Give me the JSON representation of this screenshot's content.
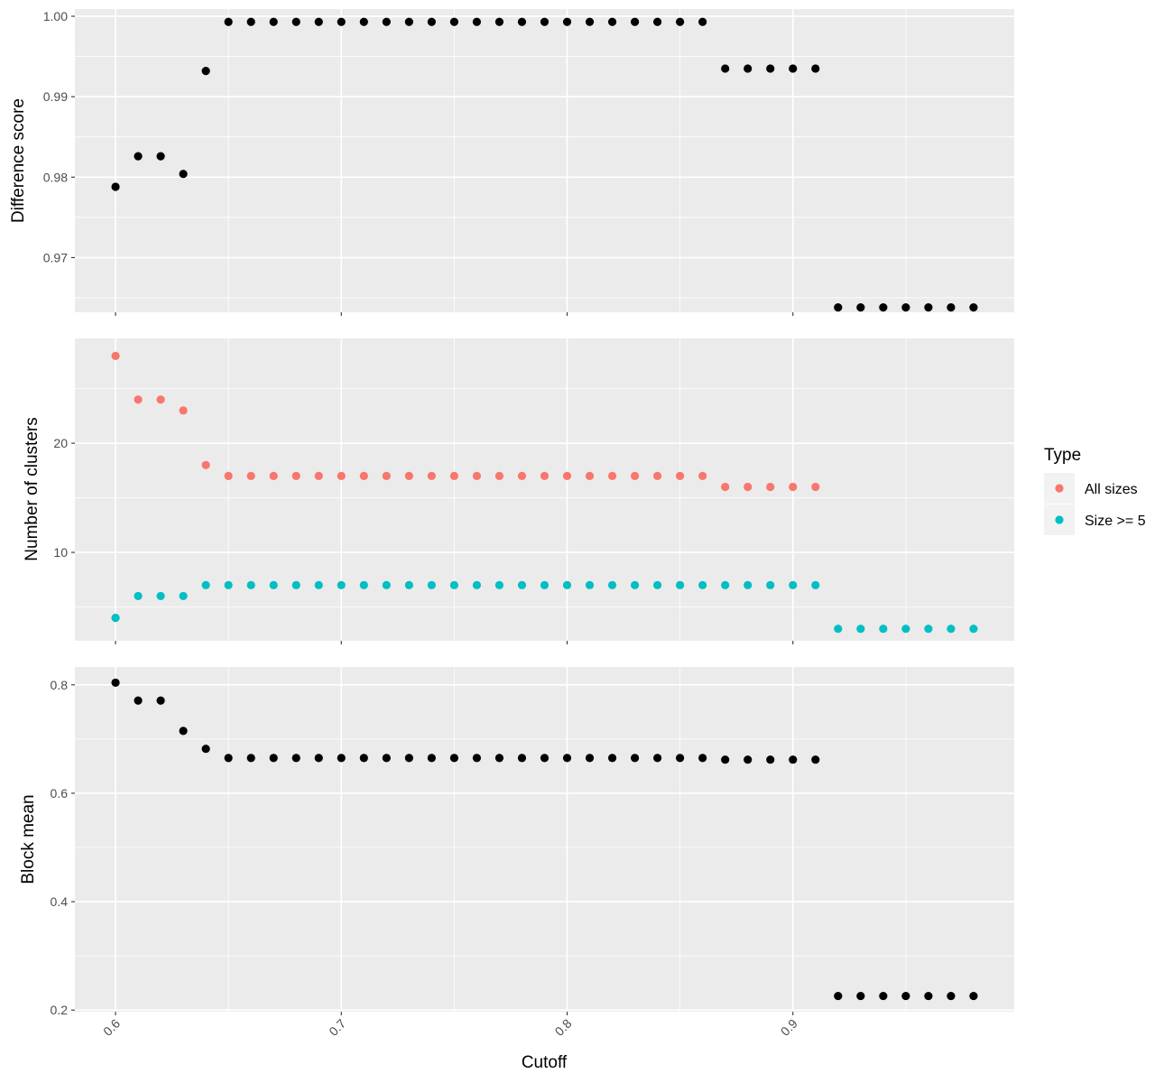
{
  "chart_data": [
    {
      "type": "scatter",
      "ylabel": "Difference score",
      "xlabel": "",
      "xlim": [
        0.582,
        0.998
      ],
      "ylim": [
        0.9632,
        1.0009
      ],
      "xticks": [
        0.6,
        0.7,
        0.8,
        0.9
      ],
      "xtick_labels": [
        "",
        "",
        "",
        ""
      ],
      "yticks": [
        0.97,
        0.98,
        0.99,
        1.0
      ],
      "ytick_labels": [
        "0.97",
        "0.98",
        "0.99",
        "1.00"
      ],
      "grid": true,
      "series": [
        {
          "color": "#000000",
          "x": [
            0.6,
            0.61,
            0.62,
            0.63,
            0.64,
            0.65,
            0.66,
            0.67,
            0.68,
            0.69,
            0.7,
            0.71,
            0.72,
            0.73,
            0.74,
            0.75,
            0.76,
            0.77,
            0.78,
            0.79,
            0.8,
            0.81,
            0.82,
            0.83,
            0.84,
            0.85,
            0.86,
            0.87,
            0.88,
            0.89,
            0.9,
            0.91,
            0.92,
            0.93,
            0.94,
            0.95,
            0.96,
            0.97,
            0.98
          ],
          "y": [
            0.9788,
            0.9826,
            0.9826,
            0.9804,
            0.9932,
            0.9993,
            0.9993,
            0.9993,
            0.9993,
            0.9993,
            0.9993,
            0.9993,
            0.9993,
            0.9993,
            0.9993,
            0.9993,
            0.9993,
            0.9993,
            0.9993,
            0.9993,
            0.9993,
            0.9993,
            0.9993,
            0.9993,
            0.9993,
            0.9993,
            0.9993,
            0.9935,
            0.9935,
            0.9935,
            0.9935,
            0.9935,
            0.9638,
            0.9638,
            0.9638,
            0.9638,
            0.9638,
            0.9638,
            0.9638
          ]
        }
      ]
    },
    {
      "type": "scatter",
      "ylabel": "Number of clusters",
      "xlabel": "",
      "xlim": [
        0.582,
        0.998
      ],
      "ylim": [
        1.9,
        29.6
      ],
      "xticks": [
        0.6,
        0.7,
        0.8,
        0.9
      ],
      "xtick_labels": [
        "",
        "",
        "",
        ""
      ],
      "yticks": [
        10,
        20
      ],
      "ytick_labels": [
        "10",
        "20"
      ],
      "grid": true,
      "legend": {
        "title": "Type",
        "position": "right",
        "entries": [
          "All sizes",
          "Size >= 5"
        ]
      },
      "series": [
        {
          "name": "All sizes",
          "color": "#F8766D",
          "x": [
            0.6,
            0.61,
            0.62,
            0.63,
            0.64,
            0.65,
            0.66,
            0.67,
            0.68,
            0.69,
            0.7,
            0.71,
            0.72,
            0.73,
            0.74,
            0.75,
            0.76,
            0.77,
            0.78,
            0.79,
            0.8,
            0.81,
            0.82,
            0.83,
            0.84,
            0.85,
            0.86,
            0.87,
            0.88,
            0.89,
            0.9,
            0.91
          ],
          "y": [
            28,
            24,
            24,
            23,
            18,
            17,
            17,
            17,
            17,
            17,
            17,
            17,
            17,
            17,
            17,
            17,
            17,
            17,
            17,
            17,
            17,
            17,
            17,
            17,
            17,
            17,
            17,
            16,
            16,
            16,
            16,
            16
          ]
        },
        {
          "name": "Size >= 5",
          "color": "#00BFC4",
          "x": [
            0.6,
            0.61,
            0.62,
            0.63,
            0.64,
            0.65,
            0.66,
            0.67,
            0.68,
            0.69,
            0.7,
            0.71,
            0.72,
            0.73,
            0.74,
            0.75,
            0.76,
            0.77,
            0.78,
            0.79,
            0.8,
            0.81,
            0.82,
            0.83,
            0.84,
            0.85,
            0.86,
            0.87,
            0.88,
            0.89,
            0.9,
            0.91,
            0.92,
            0.93,
            0.94,
            0.95,
            0.96,
            0.97,
            0.98
          ],
          "y": [
            4,
            6,
            6,
            6,
            7,
            7,
            7,
            7,
            7,
            7,
            7,
            7,
            7,
            7,
            7,
            7,
            7,
            7,
            7,
            7,
            7,
            7,
            7,
            7,
            7,
            7,
            7,
            7,
            7,
            7,
            7,
            7,
            3,
            3,
            3,
            3,
            3,
            3,
            3
          ]
        }
      ]
    },
    {
      "type": "scatter",
      "ylabel": "Block mean",
      "xlabel": "Cutoff",
      "xlim": [
        0.582,
        0.998
      ],
      "ylim": [
        0.197,
        0.833
      ],
      "xticks": [
        0.6,
        0.7,
        0.8,
        0.9
      ],
      "xtick_labels": [
        "0.6",
        "0.7",
        "0.8",
        "0.9"
      ],
      "yticks": [
        0.2,
        0.4,
        0.6,
        0.8
      ],
      "ytick_labels": [
        "0.2",
        "0.4",
        "0.6",
        "0.8"
      ],
      "grid": true,
      "series": [
        {
          "color": "#000000",
          "x": [
            0.6,
            0.61,
            0.62,
            0.63,
            0.64,
            0.65,
            0.66,
            0.67,
            0.68,
            0.69,
            0.7,
            0.71,
            0.72,
            0.73,
            0.74,
            0.75,
            0.76,
            0.77,
            0.78,
            0.79,
            0.8,
            0.81,
            0.82,
            0.83,
            0.84,
            0.85,
            0.86,
            0.87,
            0.88,
            0.89,
            0.9,
            0.91,
            0.92,
            0.93,
            0.94,
            0.95,
            0.96,
            0.97,
            0.98
          ],
          "y": [
            0.804,
            0.771,
            0.771,
            0.715,
            0.682,
            0.665,
            0.665,
            0.665,
            0.665,
            0.665,
            0.665,
            0.665,
            0.665,
            0.665,
            0.665,
            0.665,
            0.665,
            0.665,
            0.665,
            0.665,
            0.665,
            0.665,
            0.665,
            0.665,
            0.665,
            0.665,
            0.665,
            0.662,
            0.662,
            0.662,
            0.662,
            0.662,
            0.226,
            0.226,
            0.226,
            0.226,
            0.226,
            0.226,
            0.226
          ]
        }
      ]
    }
  ]
}
